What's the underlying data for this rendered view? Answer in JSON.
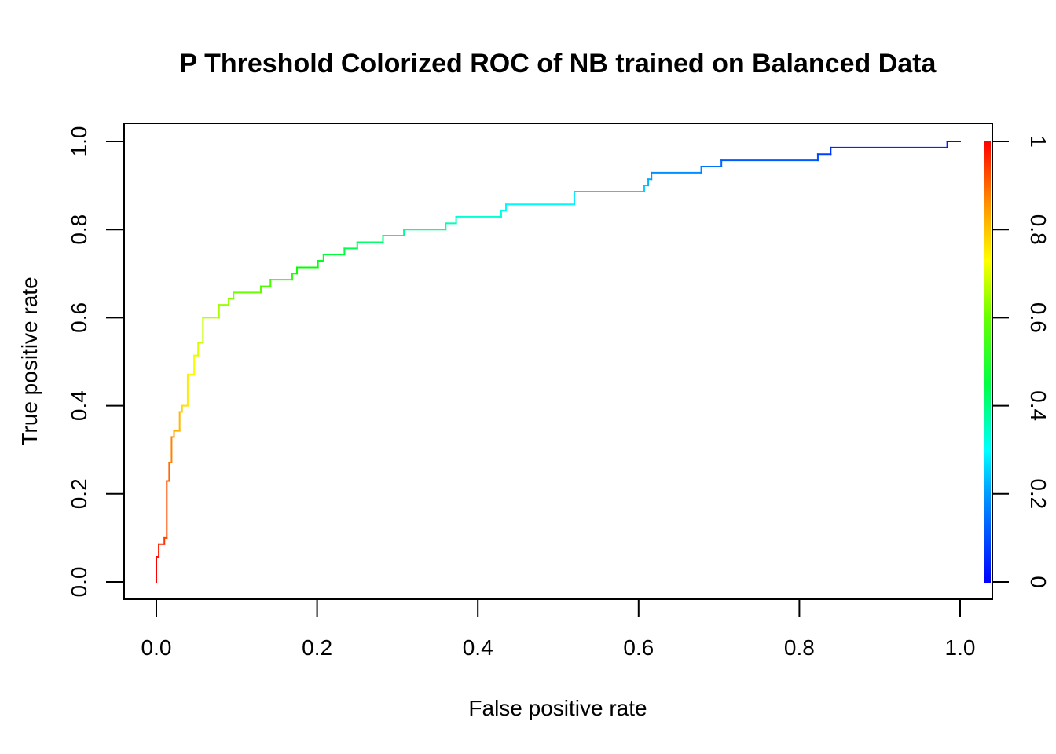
{
  "chart_data": {
    "type": "line",
    "title": "P Threshold Colorized ROC of NB trained on Balanced Data",
    "xlabel": "False positive rate",
    "ylabel": "True positive rate",
    "xlim": [
      0,
      1
    ],
    "ylim": [
      0,
      1
    ],
    "x_ticks": [
      "0.0",
      "0.2",
      "0.4",
      "0.6",
      "0.8",
      "1.0"
    ],
    "y_ticks": [
      "0.0",
      "0.2",
      "0.4",
      "0.6",
      "0.8",
      "1.0"
    ],
    "colorbar": {
      "ticks": [
        "0",
        "0.2",
        "0.4",
        "0.6",
        "0.8",
        "1"
      ],
      "range": [
        0,
        1
      ],
      "scale": "rainbow (blue at 0 to red at 1)"
    },
    "grid": false,
    "series": [
      {
        "points": [
          [
            0.0,
            0.0
          ],
          [
            0.0,
            0.057
          ],
          [
            0.003,
            0.057
          ],
          [
            0.003,
            0.086
          ],
          [
            0.01,
            0.086
          ],
          [
            0.01,
            0.1
          ],
          [
            0.013,
            0.1
          ],
          [
            0.013,
            0.229
          ],
          [
            0.016,
            0.229
          ],
          [
            0.016,
            0.271
          ],
          [
            0.019,
            0.271
          ],
          [
            0.019,
            0.329
          ],
          [
            0.022,
            0.329
          ],
          [
            0.022,
            0.343
          ],
          [
            0.029,
            0.343
          ],
          [
            0.029,
            0.386
          ],
          [
            0.032,
            0.386
          ],
          [
            0.032,
            0.4
          ],
          [
            0.039,
            0.4
          ],
          [
            0.039,
            0.471
          ],
          [
            0.047,
            0.471
          ],
          [
            0.047,
            0.514
          ],
          [
            0.052,
            0.514
          ],
          [
            0.052,
            0.543
          ],
          [
            0.058,
            0.543
          ],
          [
            0.058,
            0.6
          ],
          [
            0.078,
            0.6
          ],
          [
            0.078,
            0.629
          ],
          [
            0.09,
            0.629
          ],
          [
            0.09,
            0.643
          ],
          [
            0.096,
            0.643
          ],
          [
            0.096,
            0.657
          ],
          [
            0.13,
            0.657
          ],
          [
            0.13,
            0.671
          ],
          [
            0.142,
            0.671
          ],
          [
            0.142,
            0.686
          ],
          [
            0.169,
            0.686
          ],
          [
            0.169,
            0.7
          ],
          [
            0.175,
            0.7
          ],
          [
            0.175,
            0.714
          ],
          [
            0.201,
            0.714
          ],
          [
            0.201,
            0.729
          ],
          [
            0.208,
            0.729
          ],
          [
            0.208,
            0.743
          ],
          [
            0.234,
            0.743
          ],
          [
            0.234,
            0.757
          ],
          [
            0.25,
            0.757
          ],
          [
            0.25,
            0.771
          ],
          [
            0.282,
            0.771
          ],
          [
            0.282,
            0.786
          ],
          [
            0.308,
            0.786
          ],
          [
            0.308,
            0.8
          ],
          [
            0.36,
            0.8
          ],
          [
            0.36,
            0.814
          ],
          [
            0.373,
            0.814
          ],
          [
            0.373,
            0.829
          ],
          [
            0.429,
            0.829
          ],
          [
            0.429,
            0.843
          ],
          [
            0.435,
            0.843
          ],
          [
            0.435,
            0.857
          ],
          [
            0.52,
            0.857
          ],
          [
            0.52,
            0.886
          ],
          [
            0.607,
            0.886
          ],
          [
            0.607,
            0.9
          ],
          [
            0.612,
            0.9
          ],
          [
            0.612,
            0.914
          ],
          [
            0.616,
            0.914
          ],
          [
            0.616,
            0.929
          ],
          [
            0.678,
            0.929
          ],
          [
            0.678,
            0.943
          ],
          [
            0.703,
            0.943
          ],
          [
            0.703,
            0.957
          ],
          [
            0.823,
            0.957
          ],
          [
            0.823,
            0.971
          ],
          [
            0.839,
            0.971
          ],
          [
            0.839,
            0.986
          ],
          [
            0.984,
            0.986
          ],
          [
            0.984,
            1.0
          ],
          [
            1.0,
            1.0
          ]
        ]
      }
    ]
  }
}
